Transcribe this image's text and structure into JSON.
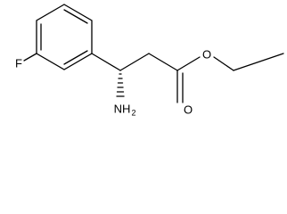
{
  "atoms": {
    "fluorine": "F",
    "amine": "NH",
    "amine_subscript": "2",
    "carbonyl_oxygen": "O",
    "ester_oxygen": "O"
  }
}
